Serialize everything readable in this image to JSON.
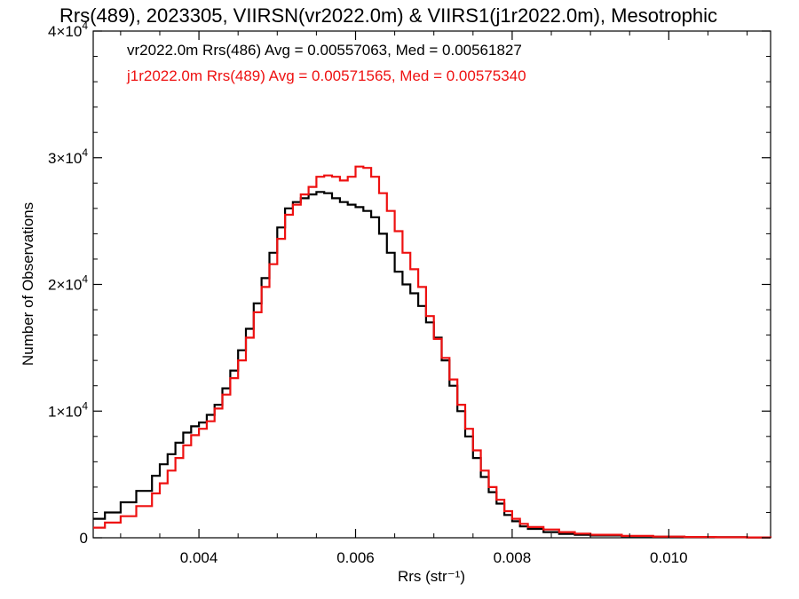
{
  "chart_data": {
    "type": "line",
    "title": "Rrs(489), 2023305, VIIRSN(vr2022.0m) & VIIRS1(j1r2022.0m), Mesotrophic",
    "xlabel": "Rrs (str⁻¹)",
    "ylabel": "Number of Observations",
    "xlim": [
      0.00265,
      0.0113
    ],
    "ylim": [
      0,
      40000
    ],
    "grid": false,
    "x_ticks": [
      0.004,
      0.006,
      0.008,
      0.01
    ],
    "x_tick_labels": [
      "0.004",
      "0.006",
      "0.008",
      "0.010"
    ],
    "y_ticks": [
      0,
      10000,
      20000,
      30000,
      40000
    ],
    "y_tick_labels": [
      {
        "base": "0",
        "exp": ""
      },
      {
        "base": "1×10",
        "exp": "4"
      },
      {
        "base": "2×10",
        "exp": "4"
      },
      {
        "base": "3×10",
        "exp": "4"
      },
      {
        "base": "4×10",
        "exp": "4"
      }
    ],
    "annotations": [
      {
        "text": "vr2022.0m Rrs(486) Avg = 0.00557063, Med = 0.00561827",
        "color": "#000000"
      },
      {
        "text": "j1r2022.0m Rrs(489) Avg = 0.00571565, Med = 0.00575340",
        "color": "#ee1111"
      }
    ],
    "series": [
      {
        "color": "#000000",
        "x": [
          0.00265,
          0.0028,
          0.003,
          0.0032,
          0.0034,
          0.0035,
          0.0036,
          0.0037,
          0.0038,
          0.0039,
          0.004,
          0.0041,
          0.0042,
          0.0043,
          0.0044,
          0.0045,
          0.0046,
          0.0047,
          0.0048,
          0.0049,
          0.005,
          0.0051,
          0.0052,
          0.0053,
          0.0054,
          0.0055,
          0.0056,
          0.0057,
          0.0058,
          0.0059,
          0.006,
          0.0061,
          0.0062,
          0.0063,
          0.0064,
          0.0065,
          0.0066,
          0.0067,
          0.0068,
          0.0069,
          0.007,
          0.0071,
          0.0072,
          0.0073,
          0.0074,
          0.0075,
          0.0076,
          0.0077,
          0.0078,
          0.0079,
          0.008,
          0.0081,
          0.0082,
          0.0084,
          0.0086,
          0.0088,
          0.009,
          0.0094,
          0.0098,
          0.0102,
          0.0106,
          0.011,
          0.0113
        ],
        "y": [
          1500,
          2000,
          2800,
          3700,
          4900,
          5800,
          6600,
          7500,
          8300,
          8800,
          9100,
          9700,
          10500,
          11800,
          13200,
          14800,
          16500,
          18500,
          20500,
          22500,
          24500,
          26000,
          26500,
          26800,
          27100,
          27300,
          27200,
          26800,
          26500,
          26300,
          26100,
          25800,
          25300,
          24000,
          22500,
          21000,
          20000,
          19300,
          18300,
          17000,
          15800,
          14000,
          12000,
          10000,
          8000,
          6300,
          4800,
          3600,
          2700,
          1800,
          1300,
          900,
          700,
          450,
          300,
          230,
          180,
          120,
          80,
          50,
          40,
          30,
          20
        ]
      },
      {
        "color": "#ee1111",
        "x": [
          0.00265,
          0.0028,
          0.003,
          0.0032,
          0.0034,
          0.0035,
          0.0036,
          0.0037,
          0.0038,
          0.0039,
          0.004,
          0.0041,
          0.0042,
          0.0043,
          0.0044,
          0.0045,
          0.0046,
          0.0047,
          0.0048,
          0.0049,
          0.005,
          0.0051,
          0.0052,
          0.0053,
          0.0054,
          0.0055,
          0.0056,
          0.0057,
          0.0058,
          0.0059,
          0.006,
          0.0061,
          0.0062,
          0.0063,
          0.0064,
          0.0065,
          0.0066,
          0.0067,
          0.0068,
          0.0069,
          0.007,
          0.0071,
          0.0072,
          0.0073,
          0.0074,
          0.0075,
          0.0076,
          0.0077,
          0.0078,
          0.0079,
          0.008,
          0.0081,
          0.0082,
          0.0084,
          0.0086,
          0.0088,
          0.009,
          0.0094,
          0.0098,
          0.0102,
          0.0106,
          0.011,
          0.0113
        ],
        "y": [
          800,
          1200,
          1700,
          2500,
          3500,
          4300,
          5300,
          6300,
          7300,
          8100,
          8600,
          9200,
          10200,
          11300,
          12600,
          14000,
          15800,
          17800,
          19800,
          21600,
          23600,
          25500,
          26300,
          27100,
          27700,
          28500,
          28600,
          28500,
          28200,
          28500,
          29300,
          29200,
          28500,
          27200,
          25800,
          24200,
          22500,
          21200,
          19800,
          17500,
          15700,
          14200,
          12500,
          10500,
          8600,
          6900,
          5300,
          4000,
          3000,
          2100,
          1500,
          1100,
          850,
          650,
          450,
          330,
          240,
          150,
          90,
          60,
          40,
          30,
          20
        ]
      }
    ]
  }
}
